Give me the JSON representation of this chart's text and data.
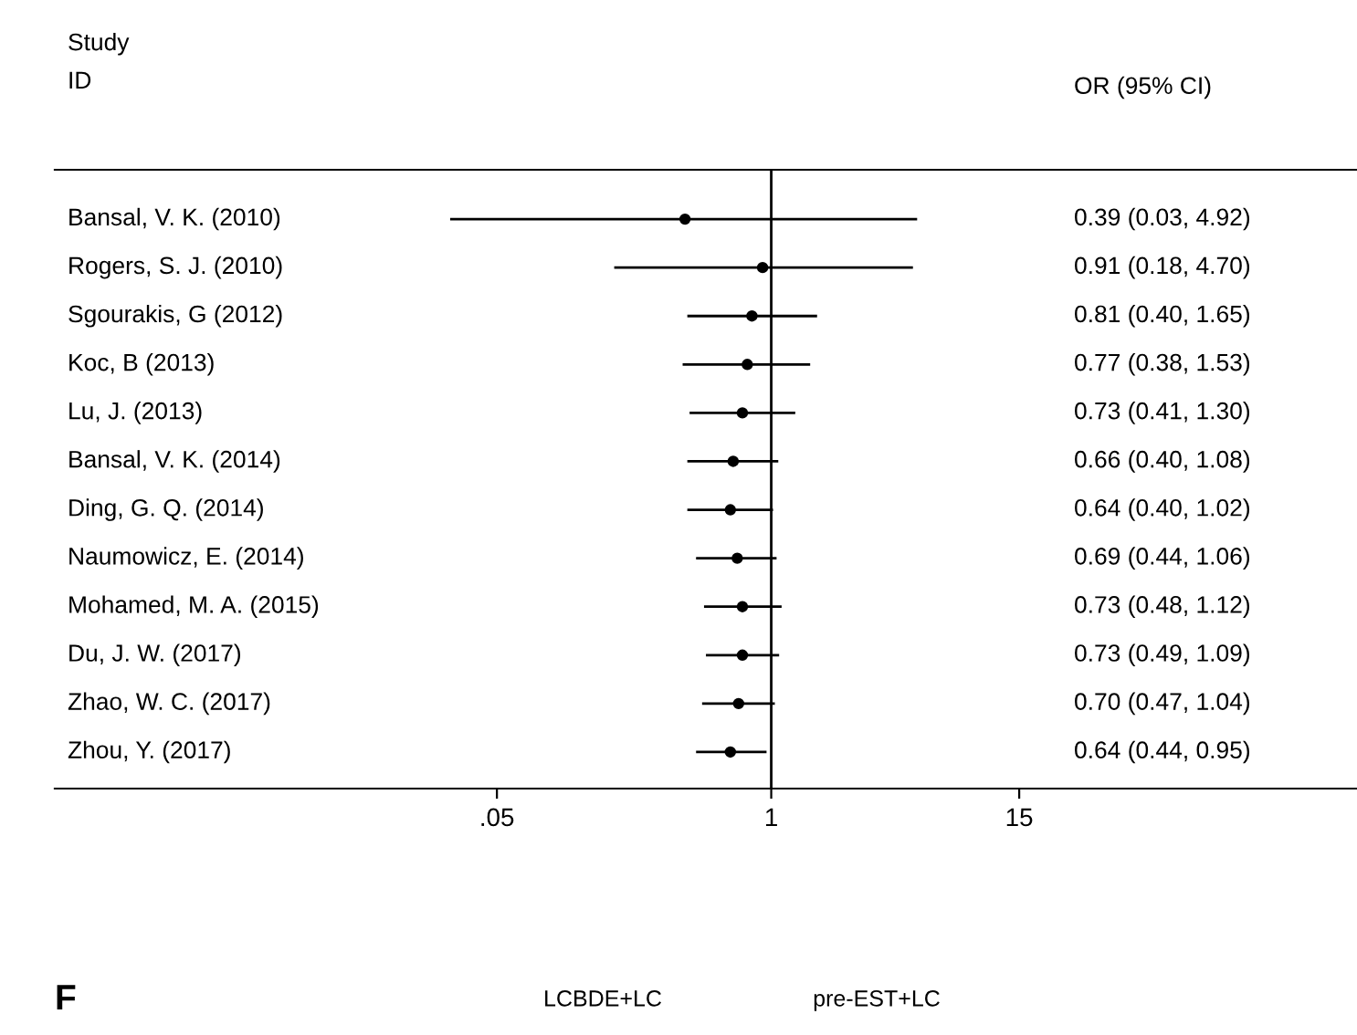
{
  "chart_data": {
    "type": "scatter",
    "orientation": "horizontal",
    "ylabel": "Study\nID",
    "categories": [
      "Bansal, V. K. (2010)",
      "Rogers, S. J. (2010)",
      "Sgourakis, G (2012)",
      "Koc, B (2013)",
      "Lu, J. (2013)",
      "Bansal, V. K. (2014)",
      "Ding, G. Q. (2014)",
      "Naumowicz, E. (2014)",
      "Mohamed, M. A. (2015)",
      "Du, J. W. (2017)",
      "Zhao, W. C. (2017)",
      "Zhou, Y. (2017)"
    ],
    "values": [
      0.39,
      0.91,
      0.81,
      0.77,
      0.73,
      0.66,
      0.64,
      0.69,
      0.73,
      0.73,
      0.7,
      0.64
    ],
    "errors": [
      [
        0.03,
        4.92
      ],
      [
        0.18,
        4.7
      ],
      [
        0.4,
        1.65
      ],
      [
        0.38,
        1.53
      ],
      [
        0.41,
        1.3
      ],
      [
        0.4,
        1.08
      ],
      [
        0.4,
        1.02
      ],
      [
        0.44,
        1.06
      ],
      [
        0.48,
        1.12
      ],
      [
        0.49,
        1.09
      ],
      [
        0.47,
        1.04
      ],
      [
        0.44,
        0.95
      ]
    ],
    "annotations": [
      "OR (95% CI)",
      "LCBDE+LC",
      "pre-EST+LC",
      "F",
      "0.39 (0.03, 4.92)",
      "0.91 (0.18, 4.70)",
      "0.81 (0.40, 1.65)",
      "0.77 (0.38, 1.53)",
      "0.73 (0.41, 1.30)",
      "0.66 (0.40, 1.08)",
      "0.64 (0.40, 1.02)",
      "0.69 (0.44, 1.06)",
      "0.73 (0.48, 1.12)",
      "0.73 (0.49, 1.09)",
      "0.70 (0.47, 1.04)",
      "0.64 (0.44, 0.95)"
    ],
    "color": "#000000",
    "marker": "circle",
    "log": "x",
    "xlim": [
      0.0004,
      600
    ],
    "xticks": [
      {
        "value": 0.05,
        "label": ".05"
      },
      1,
      15
    ],
    "ref_lines": [
      {
        "axis": "x",
        "value": 1,
        "color": "#000000"
      }
    ],
    "grid": false
  }
}
